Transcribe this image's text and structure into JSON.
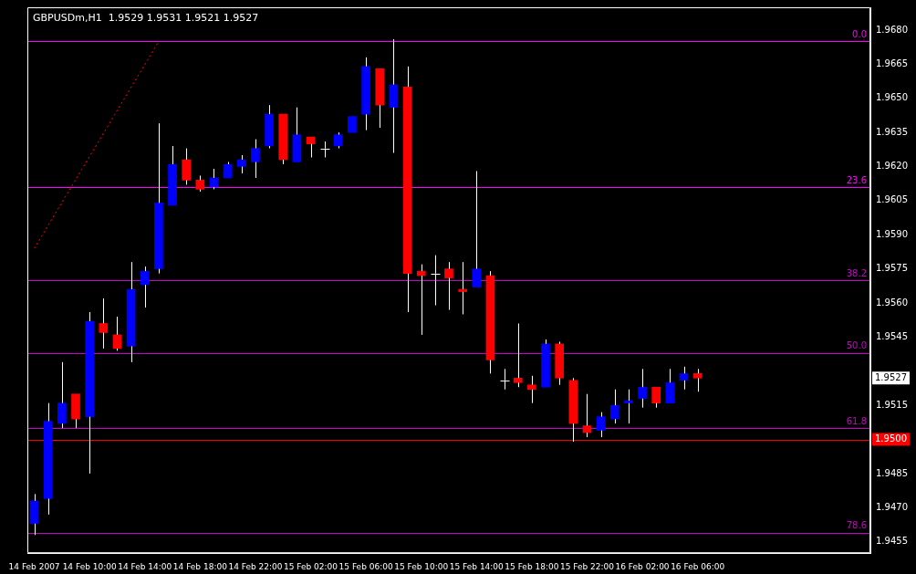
{
  "chart_data": {
    "type": "candlestick",
    "title": "GBPUSDm,H1  1.9529 1.9531 1.9521 1.9527",
    "categories": [
      "14 Feb 2007",
      null,
      null,
      null,
      "14 Feb 10:00",
      null,
      null,
      null,
      "14 Feb 14:00",
      null,
      null,
      null,
      "14 Feb 18:00",
      null,
      null,
      null,
      "14 Feb 22:00",
      null,
      null,
      null,
      "15 Feb 02:00",
      null,
      null,
      null,
      "15 Feb 06:00",
      null,
      null,
      null,
      "15 Feb 10:00",
      null,
      null,
      null,
      "15 Feb 14:00",
      null,
      null,
      null,
      "15 Feb 18:00",
      null,
      null,
      null,
      "15 Feb 22:00",
      null,
      null,
      null,
      "16 Feb 02:00",
      null,
      null,
      null,
      "16 Feb 06:00",
      null,
      null,
      null,
      null,
      null,
      null,
      null,
      null,
      null,
      null,
      null,
      null
    ],
    "ohlc": [
      [
        1.9463,
        1.9476,
        1.9458,
        1.9473
      ],
      [
        1.9474,
        1.9516,
        1.9467,
        1.9508
      ],
      [
        1.9507,
        1.9534,
        1.9505,
        1.9516
      ],
      [
        1.952,
        1.952,
        1.9505,
        1.9509
      ],
      [
        1.951,
        1.9556,
        1.9485,
        1.9552
      ],
      [
        1.9551,
        1.9562,
        1.954,
        1.9547
      ],
      [
        1.9546,
        1.9554,
        1.9539,
        1.954
      ],
      [
        1.9541,
        1.9578,
        1.9534,
        1.9566
      ],
      [
        1.9568,
        1.9576,
        1.9558,
        1.9574
      ],
      [
        1.9575,
        1.9639,
        1.9573,
        1.9604
      ],
      [
        1.9603,
        1.9629,
        1.9603,
        1.9621
      ],
      [
        1.9623,
        1.9628,
        1.9612,
        1.9614
      ],
      [
        1.9614,
        1.9616,
        1.9609,
        1.961
      ],
      [
        1.9611,
        1.9619,
        1.961,
        1.9615
      ],
      [
        1.9615,
        1.9622,
        1.9615,
        1.9621
      ],
      [
        1.962,
        1.9625,
        1.9617,
        1.9623
      ],
      [
        1.9622,
        1.9632,
        1.9615,
        1.9628
      ],
      [
        1.9629,
        1.9647,
        1.9628,
        1.9643
      ],
      [
        1.9643,
        1.9643,
        1.9621,
        1.9623
      ],
      [
        1.9622,
        1.9646,
        1.9622,
        1.9634
      ],
      [
        1.9633,
        1.9633,
        1.9624,
        1.963
      ],
      [
        1.9628,
        1.9631,
        1.9624,
        1.9628
      ],
      [
        1.9629,
        1.9635,
        1.9628,
        1.9634
      ],
      [
        1.9635,
        1.9642,
        1.9635,
        1.9642
      ],
      [
        1.9643,
        1.9668,
        1.9636,
        1.9664
      ],
      [
        1.9663,
        1.9663,
        1.9637,
        1.9647
      ],
      [
        1.9646,
        1.9676,
        1.9626,
        1.9656
      ],
      [
        1.9655,
        1.9664,
        1.9556,
        1.9573
      ],
      [
        1.9574,
        1.9577,
        1.9546,
        1.9572
      ],
      [
        1.9573,
        1.9581,
        1.9559,
        1.9573
      ],
      [
        1.9575,
        1.9578,
        1.9557,
        1.9571
      ],
      [
        1.9566,
        1.9578,
        1.9555,
        1.9565
      ],
      [
        1.9567,
        1.9618,
        1.9567,
        1.9575
      ],
      [
        1.9572,
        1.9574,
        1.9529,
        1.9535
      ],
      [
        1.9526,
        1.9531,
        1.9522,
        1.9526
      ],
      [
        1.9527,
        1.9551,
        1.9523,
        1.9525
      ],
      [
        1.9524,
        1.9528,
        1.9516,
        1.9522
      ],
      [
        1.9523,
        1.9544,
        1.9523,
        1.9542
      ],
      [
        1.9542,
        1.9543,
        1.9524,
        1.9527
      ],
      [
        1.9526,
        1.9527,
        1.9499,
        1.9507
      ],
      [
        1.9506,
        1.952,
        1.9501,
        1.9503
      ],
      [
        1.9504,
        1.9512,
        1.9501,
        1.951
      ],
      [
        1.9509,
        1.9522,
        1.9507,
        1.9515
      ],
      [
        1.9516,
        1.9522,
        1.9507,
        1.9517
      ],
      [
        1.9518,
        1.9531,
        1.9514,
        1.9523
      ],
      [
        1.9523,
        1.9523,
        1.9514,
        1.9516
      ],
      [
        1.9516,
        1.9531,
        1.9516,
        1.9525
      ],
      [
        1.9526,
        1.9532,
        1.9522,
        1.9529
      ],
      [
        1.9529,
        1.9531,
        1.9521,
        1.9527
      ],
      null,
      null,
      null,
      null,
      null,
      null,
      null,
      null,
      null,
      null,
      null,
      null
    ],
    "colors": [
      "#0000ff",
      "#0000ff",
      "#0000ff",
      "#ff0000",
      "#0000ff",
      "#ff0000",
      "#ff0000",
      "#0000ff",
      "#0000ff",
      "#0000ff",
      "#0000ff",
      "#ff0000",
      "#ff0000",
      "#0000ff",
      "#0000ff",
      "#0000ff",
      "#0000ff",
      "#0000ff",
      "#ff0000",
      "#0000ff",
      "#ff0000",
      "#000000",
      "#0000ff",
      "#0000ff",
      "#0000ff",
      "#ff0000",
      "#0000ff",
      "#ff0000",
      "#ff0000",
      "#000000",
      "#ff0000",
      "#ff0000",
      "#0000ff",
      "#ff0000",
      "#000000",
      "#ff0000",
      "#ff0000",
      "#0000ff",
      "#ff0000",
      "#ff0000",
      "#ff0000",
      "#0000ff",
      "#0000ff",
      "#0000ff",
      "#0000ff",
      "#ff0000",
      "#0000ff",
      "#0000ff",
      "#ff0000",
      null,
      null,
      null,
      null,
      null,
      null,
      null,
      null,
      null,
      null,
      null,
      null
    ],
    "series": [
      {
        "type": "line",
        "color": "#ff0000",
        "line_style": "dotted",
        "values": [
          1.9584,
          null,
          null,
          null,
          null,
          null,
          null,
          null,
          null,
          1.9675,
          null,
          null,
          null,
          null,
          null,
          null,
          null,
          null,
          null,
          null,
          null,
          null,
          null,
          null,
          null,
          null,
          null,
          null,
          null,
          null,
          null,
          null,
          null,
          null,
          null,
          null,
          null,
          null,
          null,
          null,
          null,
          null,
          null,
          null,
          null,
          null,
          null,
          null,
          null,
          null,
          null,
          null,
          null,
          null,
          null,
          null,
          null,
          null,
          null,
          null,
          null
        ]
      }
    ],
    "ylim": [
      1.945,
      1.969
    ],
    "yticks": [
      {
        "value": 1.9455,
        "label": "1.9455"
      },
      {
        "value": 1.947,
        "label": "1.9470"
      },
      {
        "value": 1.9485,
        "label": "1.9485"
      },
      {
        "value": 1.9515,
        "label": "1.9515"
      },
      {
        "value": 1.9545,
        "label": "1.9545"
      },
      {
        "value": 1.956,
        "label": "1.9560"
      },
      {
        "value": 1.9575,
        "label": "1.9575"
      },
      {
        "value": 1.959,
        "label": "1.9590"
      },
      {
        "value": 1.9605,
        "label": "1.9605"
      },
      {
        "value": 1.962,
        "label": "1.9620"
      },
      {
        "value": 1.9635,
        "label": "1.9635"
      },
      {
        "value": 1.965,
        "label": "1.9650"
      },
      {
        "value": 1.9665,
        "label": "1.9665"
      },
      {
        "value": 1.968,
        "label": "1.9680"
      }
    ],
    "ref_lines": [
      {
        "axis": "y",
        "value": 1.9675,
        "color": "#ff00ff"
      },
      {
        "axis": "y",
        "value": 1.9611,
        "color": "#ff00ff"
      },
      {
        "axis": "y",
        "value": 1.957,
        "color": "#cc00cc"
      },
      {
        "axis": "y",
        "value": 1.9538,
        "color": "#cc00cc"
      },
      {
        "axis": "y",
        "value": 1.9505,
        "color": "#cc00cc"
      },
      {
        "axis": "y",
        "value": 1.9459,
        "color": "#cc00cc"
      },
      {
        "axis": "y",
        "value": 1.95,
        "label": "1.9500",
        "color": "#ff0000"
      }
    ],
    "annotations": [
      {
        "text": "0.0",
        "y": 1.9675
      },
      {
        "text": "23.6",
        "y": 1.9611
      },
      {
        "text": "38.2",
        "y": 1.957
      },
      {
        "text": "50.0",
        "y": 1.9538
      },
      {
        "text": "61.8",
        "y": 1.9505
      },
      {
        "text": "78.6",
        "y": 1.9459
      },
      {
        "text": "1.9527",
        "y": 1.9527
      }
    ],
    "grid": false,
    "legend": false
  }
}
